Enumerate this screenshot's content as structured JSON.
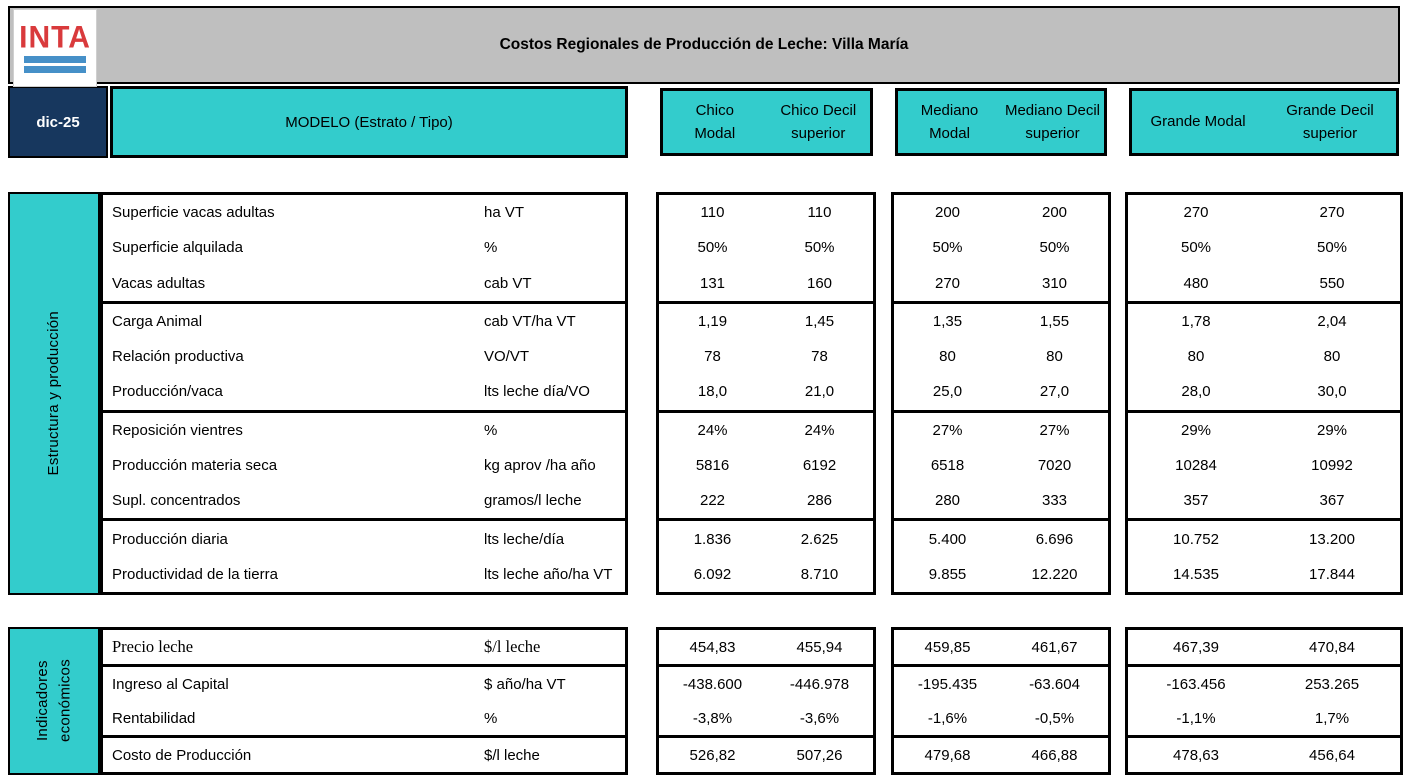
{
  "header": {
    "logo": "INTA",
    "title": "Costos Regionales de Producción de Leche: Villa María",
    "date": "dic-25",
    "model": "MODELO (Estrato / Tipo)"
  },
  "column_groups": [
    {
      "modal": "Chico\nModal",
      "decil": "Chico Decil\nsuperior"
    },
    {
      "modal": "Mediano\nModal",
      "decil": "Mediano Decil\nsuperior"
    },
    {
      "modal": "Grande Modal",
      "decil": "Grande Decil\nsuperior"
    }
  ],
  "sections": [
    {
      "side_label": "Estructura y producción",
      "subblocks": [
        {
          "rows": [
            {
              "label": "Superficie vacas adultas",
              "unit": "ha VT",
              "values": [
                "110",
                "110",
                "200",
                "200",
                "270",
                "270"
              ]
            },
            {
              "label": "Superficie alquilada",
              "unit": "%",
              "values": [
                "50%",
                "50%",
                "50%",
                "50%",
                "50%",
                "50%"
              ]
            },
            {
              "label": "Vacas adultas",
              "unit": "cab VT",
              "values": [
                "131",
                "160",
                "270",
                "310",
                "480",
                "550"
              ]
            }
          ]
        },
        {
          "rows": [
            {
              "label": "Carga Animal",
              "unit": "cab VT/ha VT",
              "values": [
                "1,19",
                "1,45",
                "1,35",
                "1,55",
                "1,78",
                "2,04"
              ]
            },
            {
              "label": "Relación productiva",
              "unit": "VO/VT",
              "values": [
                "78",
                "78",
                "80",
                "80",
                "80",
                "80"
              ]
            },
            {
              "label": "Producción/vaca",
              "unit": "lts leche día/VO",
              "values": [
                "18,0",
                "21,0",
                "25,0",
                "27,0",
                "28,0",
                "30,0"
              ]
            }
          ]
        },
        {
          "rows": [
            {
              "label": "Reposición vientres",
              "unit": "%",
              "values": [
                "24%",
                "24%",
                "27%",
                "27%",
                "29%",
                "29%"
              ]
            },
            {
              "label": "Producción materia seca",
              "unit": "kg aprov /ha año",
              "values": [
                "5816",
                "6192",
                "6518",
                "7020",
                "10284",
                "10992"
              ]
            },
            {
              "label": "Supl. concentrados",
              "unit": "gramos/l leche",
              "values": [
                "222",
                "286",
                "280",
                "333",
                "357",
                "367"
              ]
            }
          ]
        },
        {
          "rows": [
            {
              "label": "Producción diaria",
              "unit": "lts leche/día",
              "values": [
                "1.836",
                "2.625",
                "5.400",
                "6.696",
                "10.752",
                "13.200"
              ]
            },
            {
              "label": "Productividad de la tierra",
              "unit": "lts leche año/ha VT",
              "values": [
                "6.092",
                "8.710",
                "9.855",
                "12.220",
                "14.535",
                "17.844"
              ]
            }
          ]
        }
      ]
    },
    {
      "side_label": "Indicadores\neconómicos",
      "subblocks": [
        {
          "rows": [
            {
              "label": "Precio leche",
              "unit": "$/l leche",
              "font": "serif",
              "values": [
                "454,83",
                "455,94",
                "459,85",
                "461,67",
                "467,39",
                "470,84"
              ]
            }
          ]
        },
        {
          "rows": [
            {
              "label": "Ingreso al Capital",
              "unit": "$ año/ha VT",
              "values": [
                "-438.600",
                "-446.978",
                "-195.435",
                "-63.604",
                "-163.456",
                "253.265"
              ]
            },
            {
              "label": "Rentabilidad",
              "unit": "%",
              "values": [
                "-3,8%",
                "-3,6%",
                "-1,6%",
                "-0,5%",
                "-1,1%",
                "1,7%"
              ]
            }
          ]
        },
        {
          "rows": [
            {
              "label": "Costo de Producción",
              "unit": "$/l leche",
              "values": [
                "526,82",
                "507,26",
                "479,68",
                "466,88",
                "478,63",
                "456,64"
              ]
            }
          ]
        }
      ]
    }
  ],
  "colors": {
    "teal": "#33CCCC",
    "navy": "#17375E",
    "gray": "#BFBFBF",
    "logo_red": "#D93A3C",
    "logo_blue": "#4690C8"
  }
}
